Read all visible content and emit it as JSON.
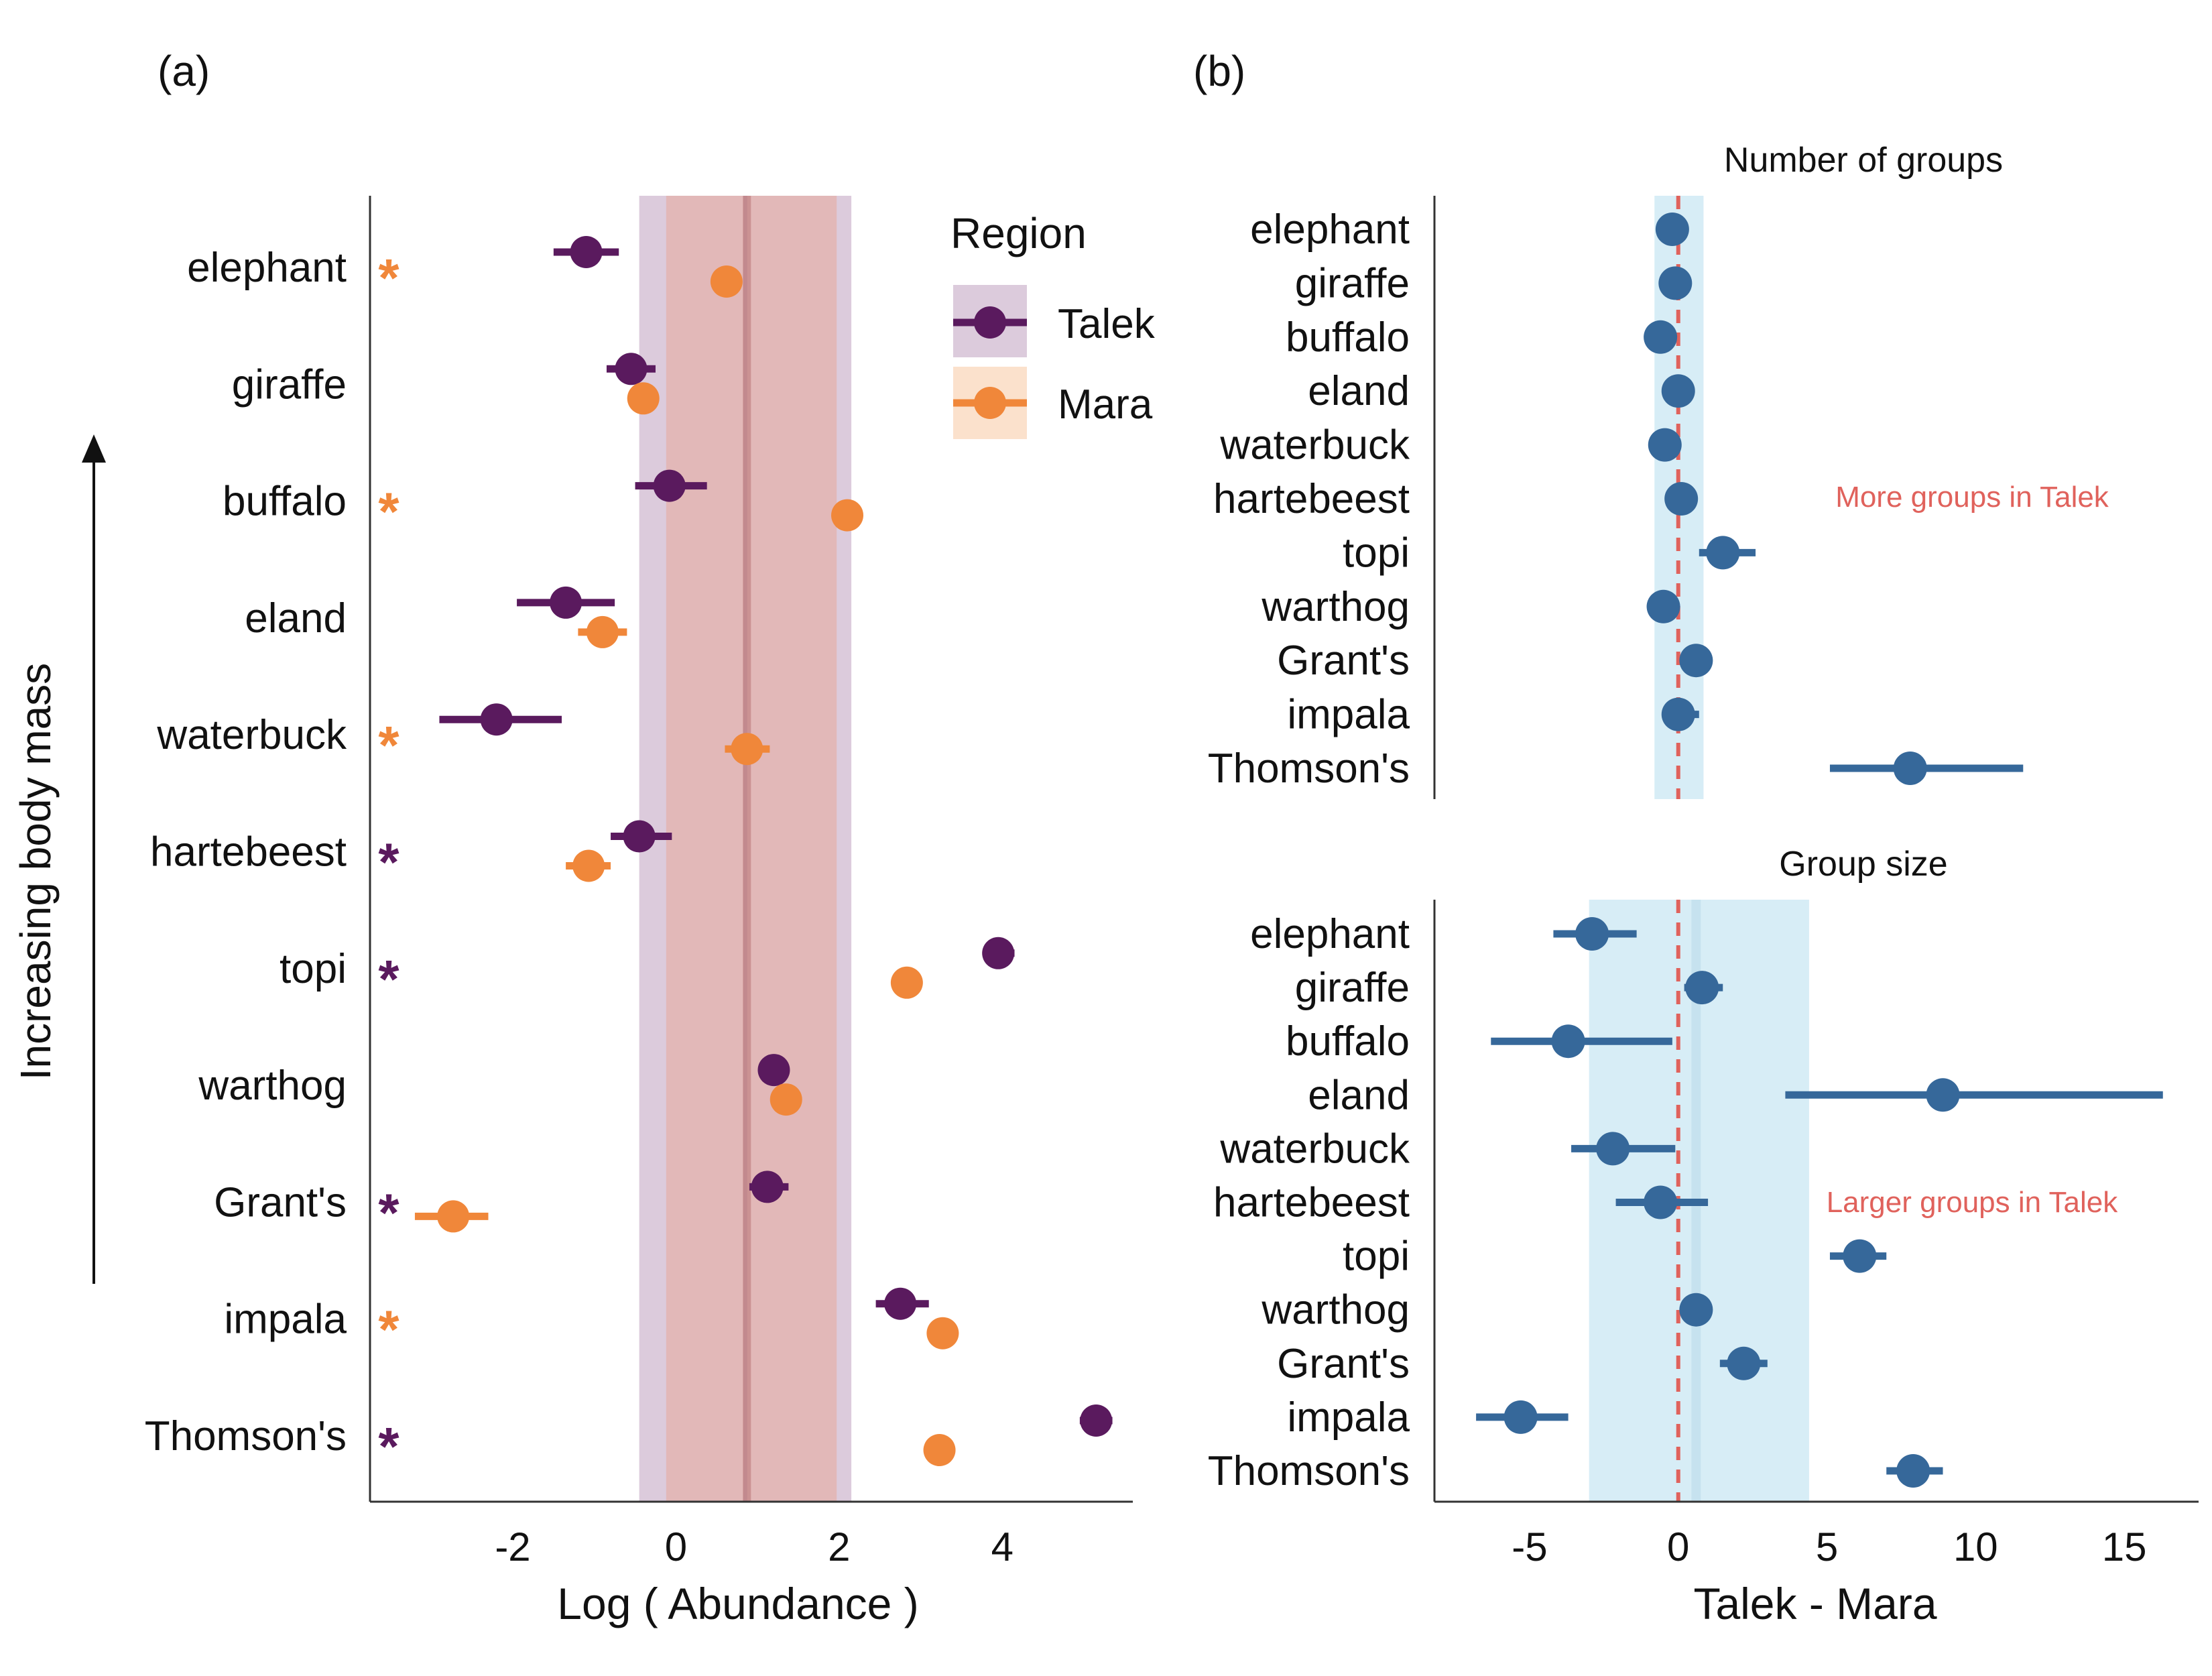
{
  "panel_labels": {
    "a": "(a)",
    "b": "(b)"
  },
  "colors": {
    "talek": "#5a1a5e",
    "mara": "#f0873a",
    "talek_band": "#dccbdc",
    "mara_band": "#e2b8b8",
    "mean_line": "#c98e90",
    "diff_point": "#36689a",
    "diff_band": "#d7edf6",
    "diff_line": "#e0625c",
    "axis": "#333333"
  },
  "side_label": "Increasing body mass",
  "annotations": {
    "b_top": "More groups in Talek",
    "b_bottom": "Larger groups in Talek"
  },
  "chart_data": [
    {
      "id": "abundance",
      "type": "scatter",
      "title": "",
      "xlabel": "Log ( Abundance )",
      "ylabel": "",
      "xlim": [
        -3.75,
        5.6
      ],
      "xticks": [
        -2,
        0,
        2,
        4
      ],
      "categories": [
        "elephant",
        "giraffe",
        "buffalo",
        "eland",
        "waterbuck",
        "hartebeest",
        "topi",
        "warthog",
        "Grant's",
        "impala",
        "Thomson's"
      ],
      "markers": [
        "*",
        "",
        "*",
        "",
        "*",
        "*",
        "*",
        "",
        "*",
        "*",
        "*"
      ],
      "marker_region": [
        "Mara",
        "",
        "Mara",
        "",
        "Mara",
        "Talek",
        "Talek",
        "",
        "Talek",
        "Mara",
        "Talek"
      ],
      "legend": {
        "title": "Region",
        "position": "top-right",
        "labels": [
          "Talek",
          "Mara"
        ]
      },
      "grid": false,
      "series": [
        {
          "name": "Talek",
          "values": [
            -1.1,
            -0.55,
            -0.08,
            -1.35,
            -2.2,
            -0.45,
            3.95,
            1.2,
            1.12,
            2.75,
            5.15
          ],
          "lower": [
            -1.5,
            -0.85,
            -0.5,
            -1.95,
            -2.9,
            -0.8,
            3.85,
            1.1,
            0.9,
            2.45,
            4.95
          ],
          "upper": [
            -0.7,
            -0.25,
            0.38,
            -0.75,
            -1.4,
            -0.05,
            4.15,
            1.3,
            1.38,
            3.1,
            5.35
          ]
        },
        {
          "name": "Mara",
          "values": [
            0.62,
            -0.4,
            2.1,
            -0.9,
            0.87,
            -1.07,
            2.83,
            1.35,
            -2.73,
            3.27,
            3.23
          ],
          "lower": [
            0.55,
            -0.45,
            2.05,
            -1.2,
            0.6,
            -1.35,
            2.78,
            1.3,
            -3.2,
            3.22,
            3.18
          ],
          "upper": [
            0.7,
            -0.35,
            2.15,
            -0.6,
            1.15,
            -0.8,
            2.88,
            1.4,
            -2.3,
            3.32,
            3.28
          ]
        }
      ],
      "reference_bands": [
        {
          "name": "Talek",
          "from": -0.45,
          "to": 2.15,
          "mean": 0.87
        },
        {
          "name": "Mara",
          "from": -0.12,
          "to": 1.97,
          "mean": 0.85
        }
      ]
    },
    {
      "id": "groups",
      "type": "scatter",
      "title": "Number of groups",
      "xlabel": "",
      "xlim": [
        -8.2,
        17.5
      ],
      "categories": [
        "elephant",
        "giraffe",
        "buffalo",
        "eland",
        "waterbuck",
        "hartebeest",
        "topi",
        "warthog",
        "Grant's",
        "impala",
        "Thomson's"
      ],
      "grid": false,
      "series": [
        {
          "name": "",
          "values": [
            -0.2,
            -0.1,
            -0.6,
            0.0,
            -0.45,
            0.1,
            1.5,
            -0.5,
            0.6,
            0.0,
            7.8
          ],
          "lower": [
            -0.3,
            -0.2,
            -0.7,
            -0.1,
            -0.55,
            0.0,
            0.7,
            -0.6,
            0.5,
            -0.5,
            5.1
          ],
          "upper": [
            -0.1,
            0.0,
            -0.5,
            0.1,
            -0.35,
            0.2,
            2.6,
            -0.4,
            0.7,
            0.7,
            11.6
          ]
        }
      ],
      "reference_band": {
        "from": -0.8,
        "to": 0.85
      },
      "reference_line": 0
    },
    {
      "id": "size",
      "type": "scatter",
      "title": "Group size",
      "xlabel": "Talek - Mara",
      "xlim": [
        -8.2,
        17.5
      ],
      "xticks": [
        -5,
        0,
        5,
        10,
        15
      ],
      "categories": [
        "elephant",
        "giraffe",
        "buffalo",
        "eland",
        "waterbuck",
        "hartebeest",
        "topi",
        "warthog",
        "Grant's",
        "impala",
        "Thomson's"
      ],
      "grid": false,
      "series": [
        {
          "name": "",
          "values": [
            -2.9,
            0.8,
            -3.7,
            8.9,
            -2.2,
            -0.6,
            6.1,
            0.6,
            2.2,
            -5.3,
            7.9
          ],
          "lower": [
            -4.2,
            0.2,
            -6.3,
            3.6,
            -3.6,
            -2.1,
            5.1,
            0.5,
            1.4,
            -6.8,
            7.0
          ],
          "upper": [
            -1.4,
            1.5,
            -0.2,
            16.3,
            -0.1,
            1.0,
            7.0,
            0.7,
            3.0,
            -3.7,
            8.9
          ]
        }
      ],
      "reference_band": {
        "from": -3.0,
        "to": 4.4
      },
      "reference_line": 0,
      "inner_line": 0.6
    }
  ]
}
